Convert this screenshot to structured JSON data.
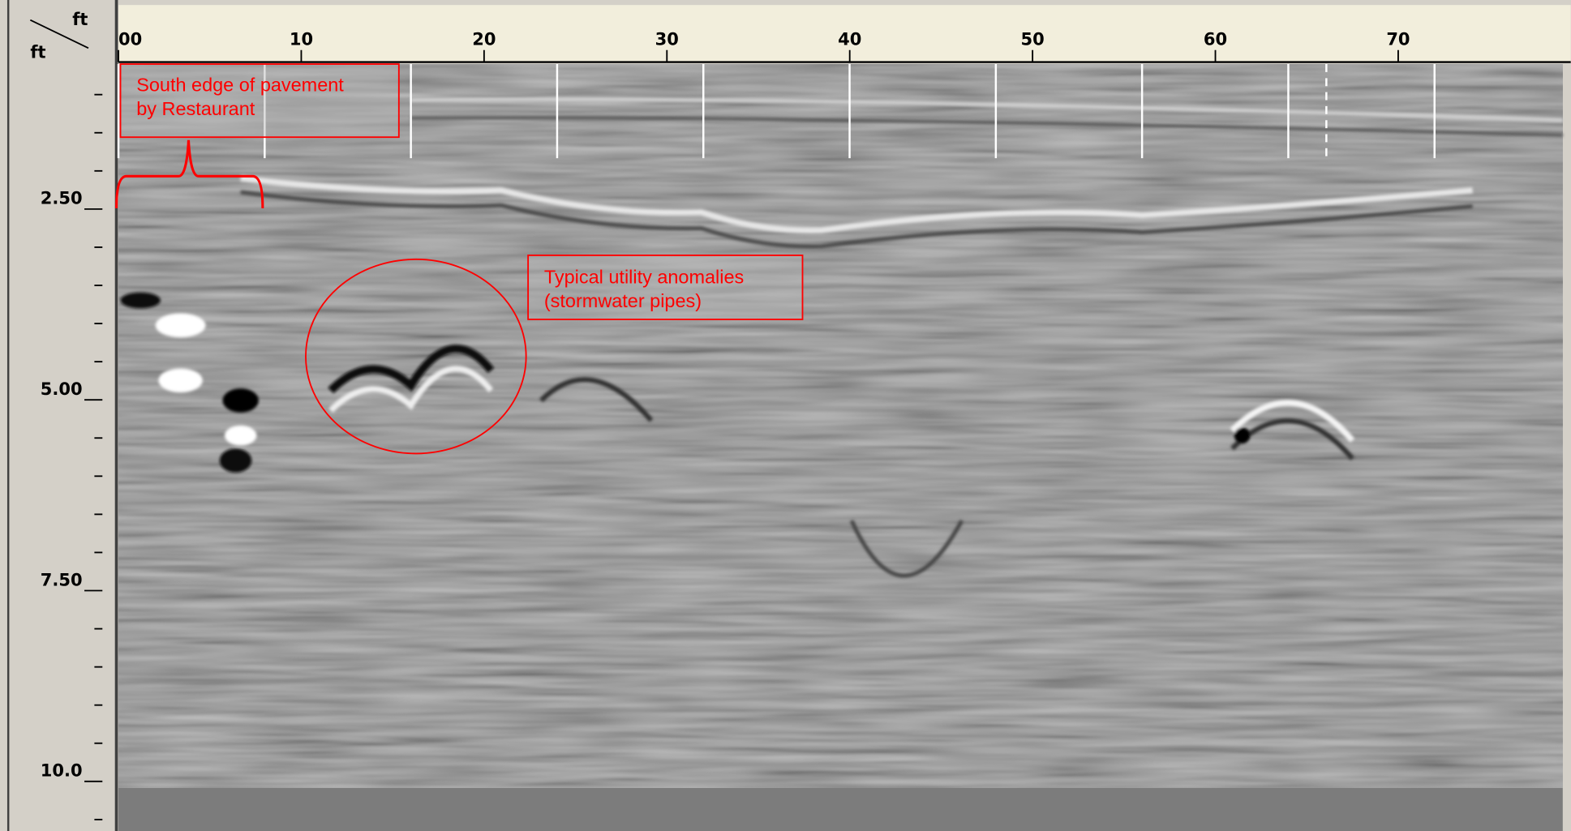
{
  "chart_data": {
    "type": "radargram",
    "x_unit": "ft",
    "y_unit": "ft",
    "xlim": [
      0,
      79
    ],
    "xticks": [
      {
        "value": 0,
        "label": "00"
      },
      10,
      20,
      30,
      40,
      50,
      60,
      70
    ],
    "ylim": [
      0.6,
      10.65
    ],
    "yticks": [
      {
        "value": 2.5,
        "label": "2.50"
      },
      {
        "value": 5,
        "label": "5.00"
      },
      {
        "value": 7.5,
        "label": "7.50"
      },
      {
        "value": 10,
        "label": "10.0"
      }
    ],
    "minor_yticks": [
      1,
      1.5,
      2,
      3,
      3.5,
      4,
      4.5,
      5.5,
      6,
      6.5,
      7,
      8,
      8.5,
      9,
      9.5,
      10.5
    ],
    "annotations": [
      {
        "lines": [
          "South edge of pavement",
          "by Restaurant"
        ],
        "color": "#ff0000"
      },
      {
        "lines": [
          "Typical utility anomalies",
          "(stormwater pipes)"
        ],
        "color": "#ff0000"
      }
    ]
  }
}
